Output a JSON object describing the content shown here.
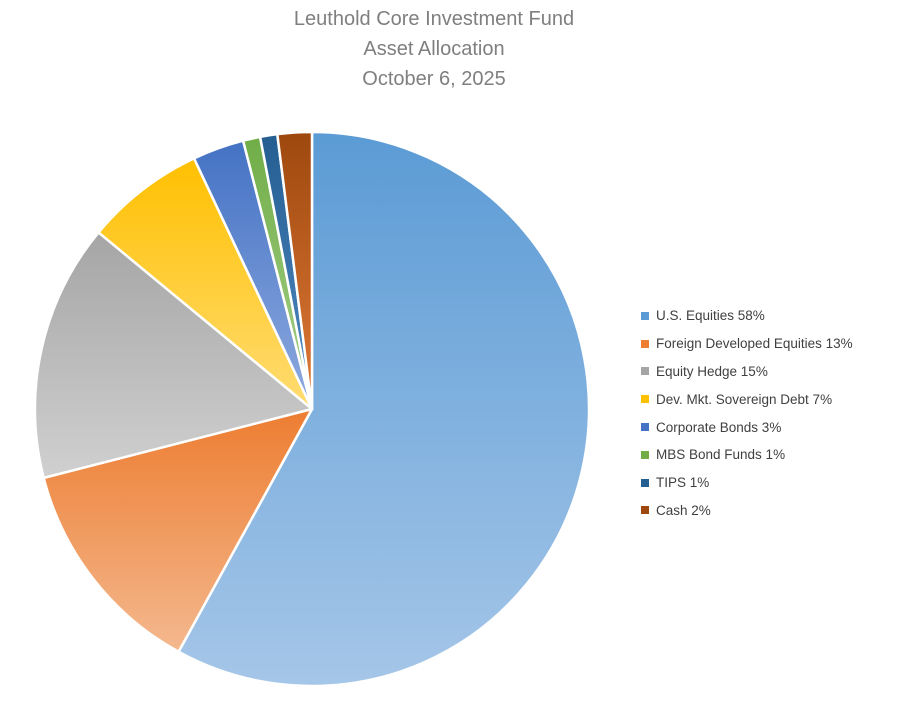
{
  "chart_data": {
    "type": "pie",
    "title": "Leuthold Core Investment Fund",
    "subtitle": "Asset Allocation",
    "date": "October 6, 2025",
    "legend_position": "right",
    "slices": [
      {
        "label": "U.S. Equities 58%",
        "value": 58,
        "color": "#5b9bd5",
        "color_light": "#a5c6e8"
      },
      {
        "label": "Foreign Developed Equities 13%",
        "value": 13,
        "color": "#ed7d31",
        "color_light": "#f4b88e"
      },
      {
        "label": "Equity Hedge 15%",
        "value": 15,
        "color": "#a5a5a5",
        "color_light": "#d0d0d0"
      },
      {
        "label": "Dev. Mkt. Sovereign Debt 7%",
        "value": 7,
        "color": "#ffc000",
        "color_light": "#ffdc73"
      },
      {
        "label": "Corporate Bonds 3%",
        "value": 3,
        "color": "#4472c4",
        "color_light": "#8eaadf"
      },
      {
        "label": "MBS Bond Funds 1%",
        "value": 1,
        "color": "#70ad47",
        "color_light": "#a8d08d"
      },
      {
        "label": "TIPS 1%",
        "value": 1,
        "color": "#255e91",
        "color_light": "#4f8ac4"
      },
      {
        "label": "Cash 2%",
        "value": 2,
        "color": "#9e480e",
        "color_light": "#e07a38"
      }
    ]
  }
}
